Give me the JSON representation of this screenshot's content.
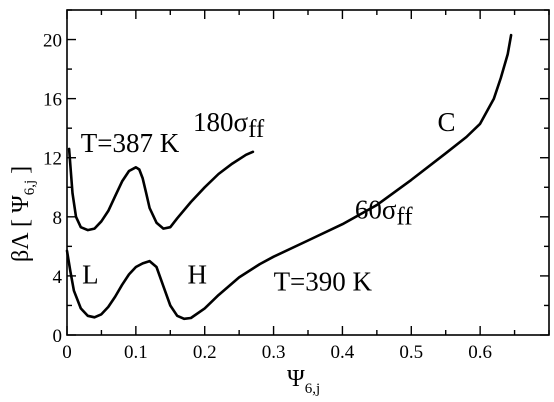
{
  "chart_data": {
    "type": "line",
    "xlim": [
      0,
      0.7
    ],
    "ylim": [
      0,
      22
    ],
    "x_ticks": [
      "0",
      "0.1",
      "0.2",
      "0.3",
      "0.4",
      "0.5",
      "0.6"
    ],
    "x_tick_values": [
      0,
      0.1,
      0.2,
      0.3,
      0.4,
      0.5,
      0.6
    ],
    "x_minor_step": 0.05,
    "y_ticks": [
      "0",
      "4",
      "8",
      "12",
      "16",
      "20"
    ],
    "y_tick_values": [
      0,
      4,
      8,
      12,
      16,
      20
    ],
    "y_minor_step": 2,
    "xlabel": {
      "main": "Ψ",
      "sub": "6,j"
    },
    "ylabel": {
      "main": "βΛ [ Ψ",
      "sub": "6,j",
      "close": " ]"
    },
    "grid": false,
    "series": [
      {
        "x": [
          0.003,
          0.008,
          0.013,
          0.02,
          0.03,
          0.04,
          0.05,
          0.06,
          0.07,
          0.08,
          0.09,
          0.1,
          0.105,
          0.11,
          0.115,
          0.12,
          0.13,
          0.14,
          0.15,
          0.16,
          0.18,
          0.2,
          0.22,
          0.24,
          0.26,
          0.27
        ],
        "y": [
          12.6,
          9.6,
          8.0,
          7.3,
          7.1,
          7.2,
          7.7,
          8.4,
          9.4,
          10.4,
          11.1,
          11.35,
          11.2,
          10.6,
          9.6,
          8.6,
          7.6,
          7.2,
          7.3,
          7.9,
          9.0,
          10.0,
          10.9,
          11.6,
          12.2,
          12.4
        ]
      },
      {
        "x": [
          0.0,
          0.005,
          0.01,
          0.02,
          0.03,
          0.04,
          0.05,
          0.06,
          0.07,
          0.08,
          0.09,
          0.1,
          0.11,
          0.12,
          0.13,
          0.14,
          0.15,
          0.16,
          0.17,
          0.18,
          0.2,
          0.22,
          0.25,
          0.28,
          0.3,
          0.35,
          0.4,
          0.45,
          0.5,
          0.55,
          0.58,
          0.6,
          0.62,
          0.63,
          0.64,
          0.645
        ],
        "y": [
          5.7,
          4.3,
          3.0,
          1.8,
          1.3,
          1.2,
          1.4,
          1.9,
          2.6,
          3.4,
          4.1,
          4.6,
          4.85,
          5.0,
          4.6,
          3.3,
          2.0,
          1.3,
          1.1,
          1.15,
          1.8,
          2.7,
          3.9,
          4.8,
          5.3,
          6.4,
          7.5,
          8.8,
          10.5,
          12.3,
          13.4,
          14.3,
          16.0,
          17.4,
          19.0,
          20.3
        ]
      }
    ],
    "annotations": [
      {
        "main": "T=387 K",
        "x": 0.02,
        "y": 12.4,
        "size": 27
      },
      {
        "main": "180σ",
        "sub": "ff",
        "x": 0.183,
        "y": 13.8,
        "size": 31
      },
      {
        "main": "C",
        "x": 0.538,
        "y": 13.8,
        "size": 27
      },
      {
        "main": "60σ",
        "sub": "ff",
        "x": 0.418,
        "y": 7.9,
        "size": 31
      },
      {
        "main": "L",
        "x": 0.022,
        "y": 3.5,
        "size": 27
      },
      {
        "main": "H",
        "x": 0.175,
        "y": 3.5,
        "size": 27
      },
      {
        "main": "T=390 K",
        "x": 0.3,
        "y": 3.0,
        "size": 27
      }
    ]
  }
}
